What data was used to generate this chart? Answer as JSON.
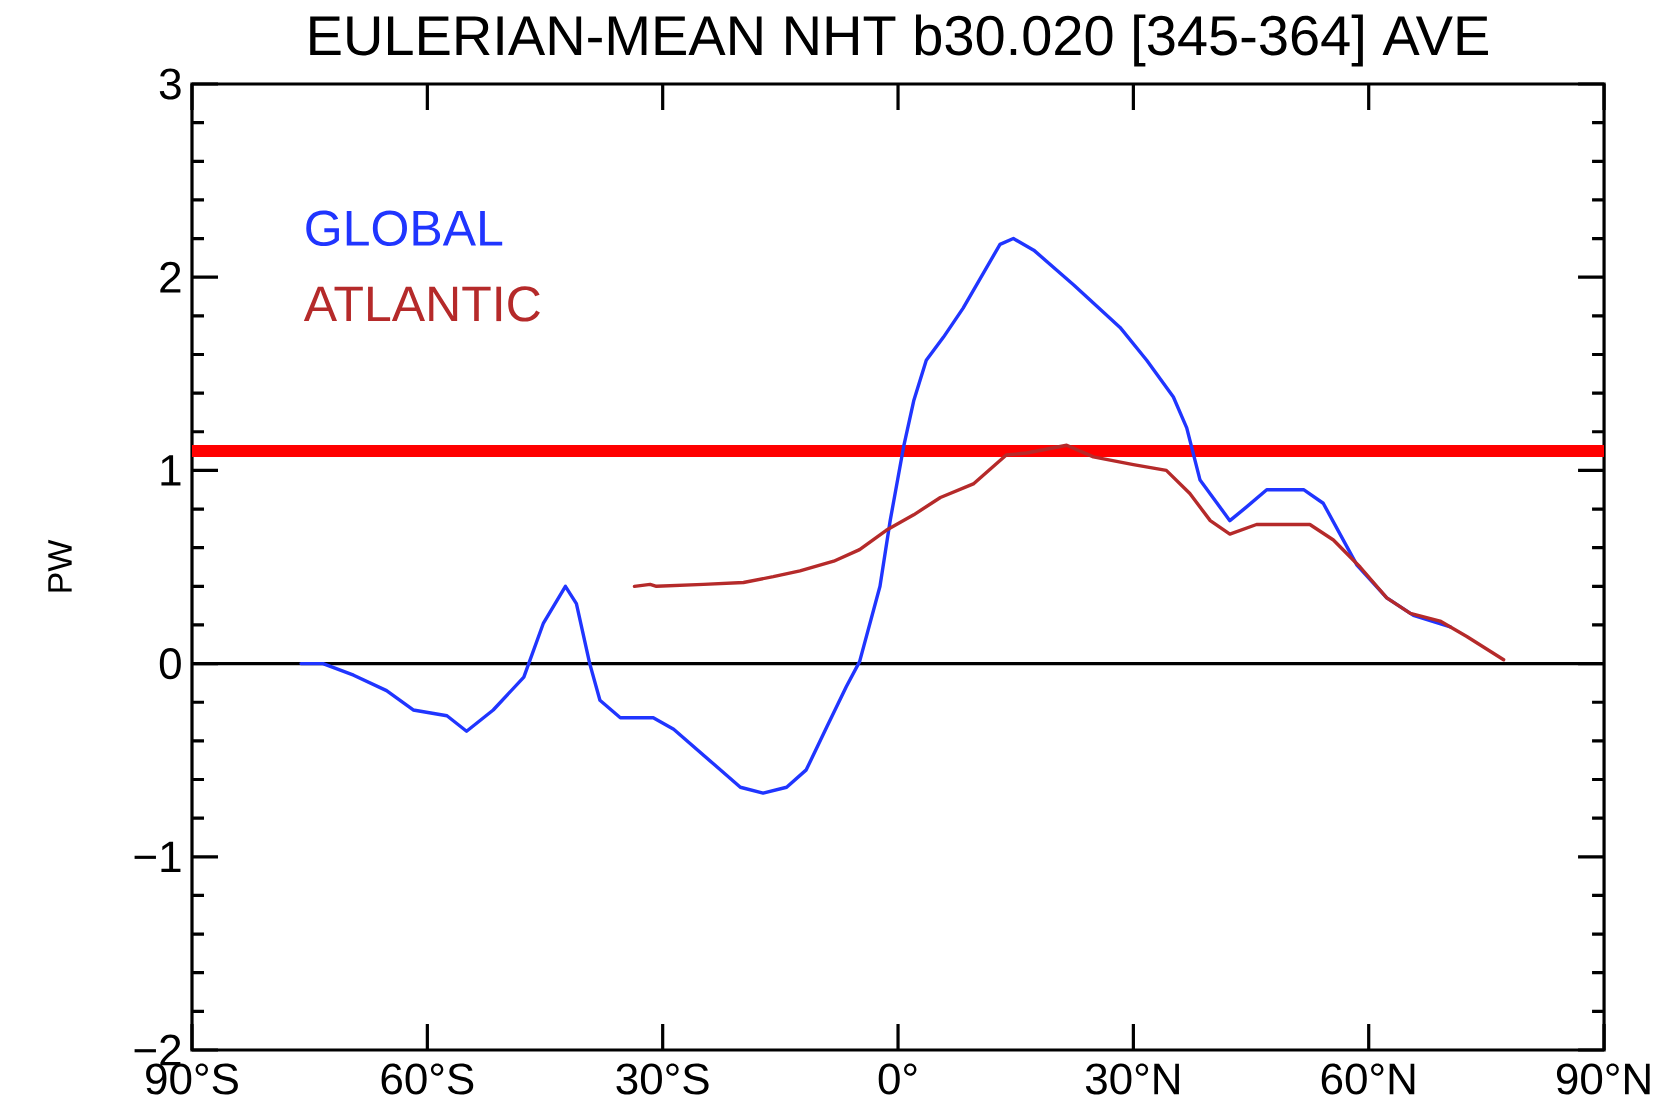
{
  "chart_data": {
    "type": "line",
    "title": "EULERIAN-MEAN NHT b30.020 [345-364] AVE",
    "ylabel": "PW",
    "xlim": [
      -90,
      90
    ],
    "xticks": [
      {
        "value": -90,
        "label": "90°S"
      },
      {
        "value": -60,
        "label": "60°S"
      },
      {
        "value": -30,
        "label": "30°S"
      },
      {
        "value": 0,
        "label": "0°"
      },
      {
        "value": 30,
        "label": "30°N"
      },
      {
        "value": 60,
        "label": "60°N"
      },
      {
        "value": 90,
        "label": "90°N"
      }
    ],
    "ylim": [
      -2,
      3
    ],
    "yticks": [
      {
        "value": -2,
        "label": "−2"
      },
      {
        "value": -1,
        "label": "−1"
      },
      0,
      1,
      2,
      3
    ],
    "legend": "top left",
    "marker": "none",
    "ref_lines": [
      {
        "axis": "y",
        "value": 0,
        "color": "#000000"
      },
      {
        "axis": "y",
        "value": 1.1,
        "color": "#ff0000"
      }
    ],
    "series": [
      {
        "name": "GLOBAL",
        "color": "#2035ff",
        "x": [
          -76.1,
          -73.3,
          -69.4,
          -65.2,
          -61.8,
          -57.5,
          -55.0,
          -51.6,
          -47.7,
          -45.2,
          -42.4,
          -41.0,
          -39.3,
          -38.0,
          -35.4,
          -31.2,
          -28.6,
          -23.5,
          -20.1,
          -17.2,
          -14.2,
          -11.7,
          -9.1,
          -6.6,
          -4.9,
          -2.3,
          -1.0,
          0.7,
          2.0,
          3.6,
          5.8,
          8.3,
          13.0,
          14.7,
          17.3,
          22.4,
          28.3,
          31.7,
          35.1,
          36.8,
          38.5,
          42.3,
          44.4,
          47.0,
          51.7,
          54.2,
          58.5,
          62.3,
          65.7,
          70.4
        ],
        "values": [
          0.0,
          0.0,
          -0.06,
          -0.14,
          -0.24,
          -0.27,
          -0.35,
          -0.24,
          -0.07,
          0.21,
          0.4,
          0.31,
          0.0,
          -0.19,
          -0.28,
          -0.28,
          -0.34,
          -0.52,
          -0.64,
          -0.67,
          -0.64,
          -0.55,
          -0.33,
          -0.12,
          0.01,
          0.4,
          0.74,
          1.12,
          1.36,
          1.57,
          1.69,
          1.84,
          2.17,
          2.2,
          2.14,
          1.96,
          1.74,
          1.57,
          1.38,
          1.22,
          0.95,
          0.74,
          0.81,
          0.9,
          0.9,
          0.83,
          0.51,
          0.34,
          0.25,
          0.19
        ]
      },
      {
        "name": "ATLANTIC",
        "color": "#b52a2a",
        "x": [
          -33.6,
          -31.6,
          -30.8,
          -24.8,
          -19.7,
          -15.9,
          -12.5,
          -8.2,
          -4.9,
          -1.5,
          2.0,
          5.4,
          9.6,
          13.8,
          16.4,
          21.5,
          24.9,
          30.0,
          34.2,
          37.2,
          39.8,
          42.3,
          45.7,
          52.5,
          55.5,
          58.9,
          62.3,
          65.3,
          69.1,
          72.5,
          77.2
        ],
        "values": [
          0.4,
          0.41,
          0.4,
          0.41,
          0.42,
          0.45,
          0.48,
          0.53,
          0.59,
          0.69,
          0.77,
          0.86,
          0.93,
          1.08,
          1.09,
          1.13,
          1.07,
          1.03,
          1.0,
          0.88,
          0.74,
          0.67,
          0.72,
          0.72,
          0.64,
          0.5,
          0.34,
          0.26,
          0.22,
          0.14,
          0.02
        ]
      }
    ]
  }
}
